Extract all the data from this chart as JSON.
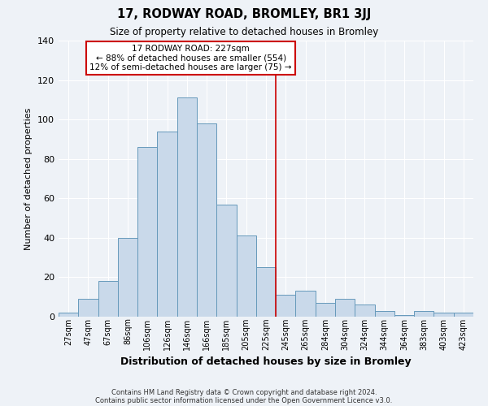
{
  "title": "17, RODWAY ROAD, BROMLEY, BR1 3JJ",
  "subtitle": "Size of property relative to detached houses in Bromley",
  "xlabel": "Distribution of detached houses by size in Bromley",
  "ylabel": "Number of detached properties",
  "bar_labels": [
    "27sqm",
    "47sqm",
    "67sqm",
    "86sqm",
    "106sqm",
    "126sqm",
    "146sqm",
    "166sqm",
    "185sqm",
    "205sqm",
    "225sqm",
    "245sqm",
    "265sqm",
    "284sqm",
    "304sqm",
    "324sqm",
    "344sqm",
    "364sqm",
    "383sqm",
    "403sqm",
    "423sqm"
  ],
  "bar_values": [
    2,
    9,
    18,
    40,
    86,
    94,
    111,
    98,
    57,
    41,
    25,
    11,
    13,
    7,
    9,
    6,
    3,
    1,
    3,
    2,
    2
  ],
  "bar_color": "#c9d9ea",
  "bar_edge_color": "#6699bb",
  "ylim": [
    0,
    140
  ],
  "yticks": [
    0,
    20,
    40,
    60,
    80,
    100,
    120,
    140
  ],
  "vline_color": "#cc0000",
  "annotation_title": "17 RODWAY ROAD: 227sqm",
  "annotation_line1": "← 88% of detached houses are smaller (554)",
  "annotation_line2": "12% of semi-detached houses are larger (75) →",
  "annotation_box_color": "#cc0000",
  "footer_line1": "Contains HM Land Registry data © Crown copyright and database right 2024.",
  "footer_line2": "Contains public sector information licensed under the Open Government Licence v3.0.",
  "background_color": "#eef2f7",
  "grid_color": "#ffffff"
}
